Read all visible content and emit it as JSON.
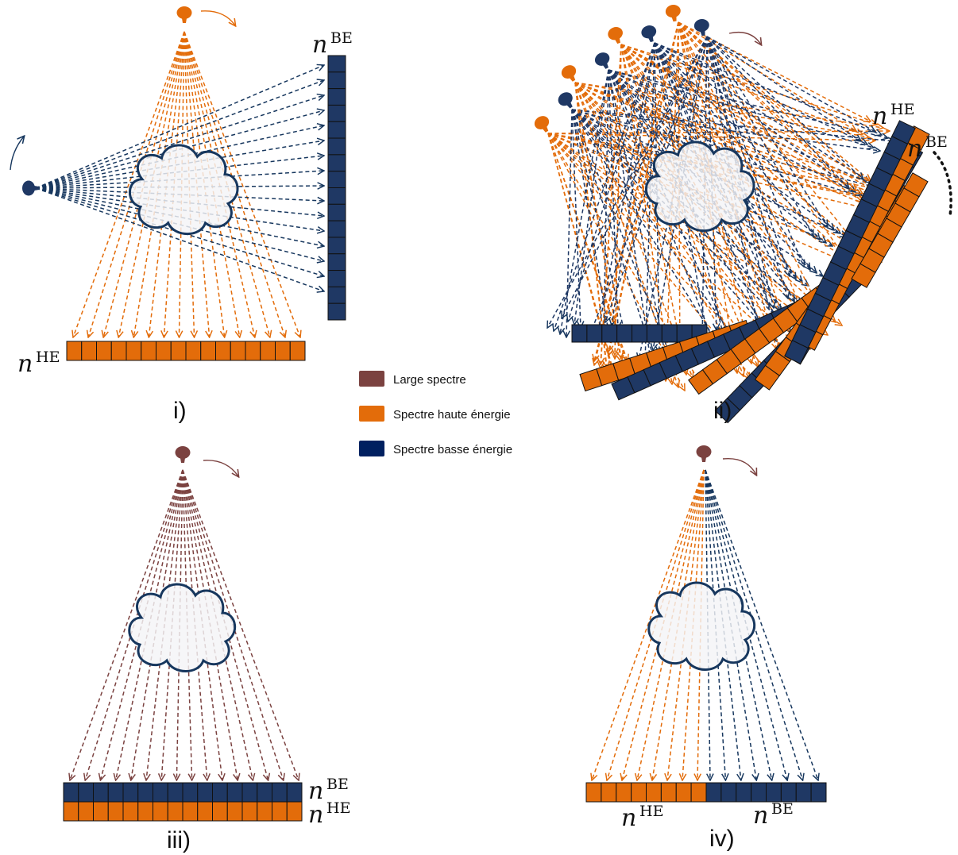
{
  "colors": {
    "broad": "#7b4240",
    "high": "#e36c0a",
    "low": "#17375e",
    "lowDark": "#1f3864",
    "cloudFill": "#f4f4f6",
    "cloudStroke": "#17375e",
    "arc": "#7b4240"
  },
  "legend": {
    "items": [
      {
        "label": "Large spectre",
        "color": "#7b4240"
      },
      {
        "label": "Spectre haute énergie",
        "color": "#e36c0a"
      },
      {
        "label": "Spectre basse énergie",
        "color": "#002060"
      }
    ]
  },
  "panels": {
    "p1": {
      "label": "i)"
    },
    "p2": {
      "label": "ii)"
    },
    "p3": {
      "label": "iii)"
    },
    "p4": {
      "label": "iv)"
    }
  },
  "detector_labels": {
    "n": "n",
    "he": "HE",
    "be": "BE"
  }
}
